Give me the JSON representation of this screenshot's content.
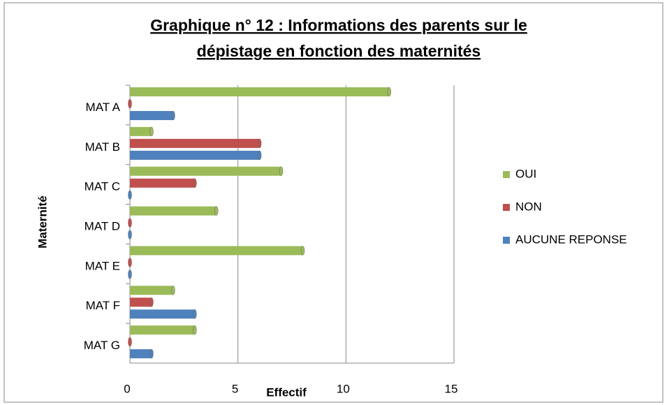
{
  "chart_data": {
    "type": "hbar",
    "title": [
      "Graphique n° 12 : Informations des parents sur le",
      "dépistage en fonction des maternités"
    ],
    "x_label": "Effectif",
    "y_label": "Maternité",
    "categories": [
      "MAT A",
      "MAT B",
      "MAT C",
      "MAT D",
      "MAT E",
      "MAT F",
      "MAT G"
    ],
    "series": [
      {
        "name": "OUI",
        "color": "#9bbb59",
        "values": [
          12,
          1,
          7,
          4,
          8,
          2,
          3
        ]
      },
      {
        "name": "NON",
        "color": "#c0504d",
        "values": [
          0,
          6,
          3,
          0,
          0,
          1,
          0
        ]
      },
      {
        "name": "AUCUNE REPONSE",
        "color": "#4f81bd",
        "values": [
          2,
          6,
          0,
          0,
          0,
          3,
          1
        ]
      }
    ],
    "xlim": [
      0,
      15
    ],
    "xticks": [
      0,
      5,
      10,
      15
    ],
    "grid": true,
    "legend": "right"
  }
}
